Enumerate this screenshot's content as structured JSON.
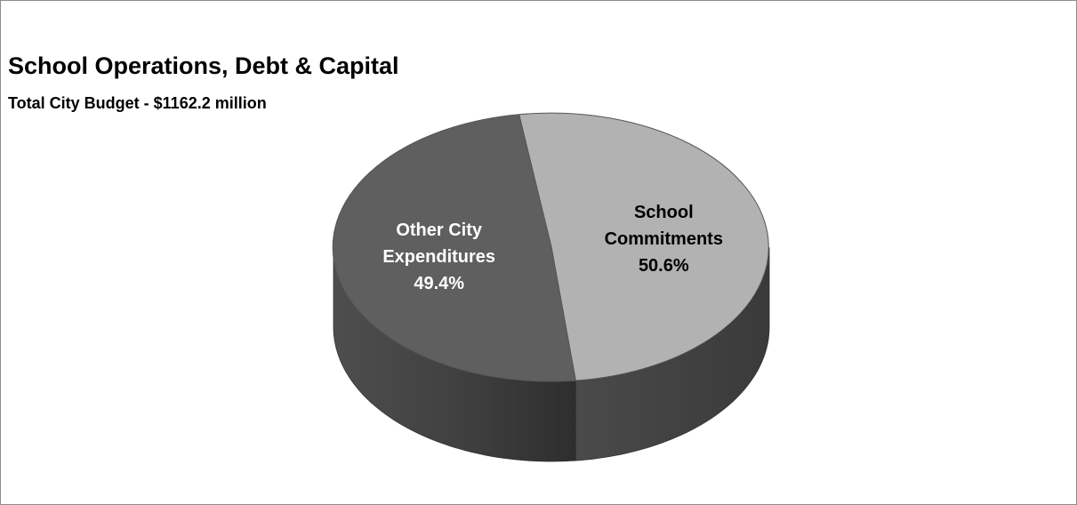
{
  "chart_data": {
    "type": "pie",
    "style": "3d",
    "title": "School Operations, Debt & Capital",
    "subtitle": "Total City Budget - $1162.2 million",
    "slices": [
      {
        "label_lines": [
          "School",
          "Commitments"
        ],
        "value": 50.6,
        "value_label": "50.6%",
        "color": "#b2b2b2",
        "label_color": "#000000"
      },
      {
        "label_lines": [
          "Other City",
          "Expenditures"
        ],
        "value": 49.4,
        "value_label": "49.4%",
        "color": "#5f5f5f",
        "label_color": "#ffffff"
      }
    ]
  }
}
